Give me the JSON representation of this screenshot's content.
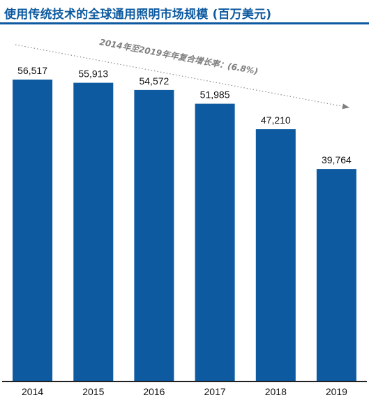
{
  "chart_data": {
    "type": "bar",
    "title": "使用传统技术的全球通用照明市场规模 (百万美元)",
    "categories": [
      "2014",
      "2015",
      "2016",
      "2017",
      "2018",
      "2019"
    ],
    "values": [
      56517,
      55913,
      54572,
      51985,
      47210,
      39764
    ],
    "value_labels": [
      "56,517",
      "55,913",
      "54,572",
      "51,985",
      "47,210",
      "39,764"
    ],
    "annotation": "2014年至2019年年复合增长率：(6.8%)",
    "ylim": [
      0,
      66000
    ],
    "xlabel": "",
    "ylabel": "",
    "grid": false,
    "legend": "none",
    "colors": {
      "bar": "#0d5aa0",
      "title": "#0d5aa0",
      "annotation": "#7f7f7f"
    }
  }
}
